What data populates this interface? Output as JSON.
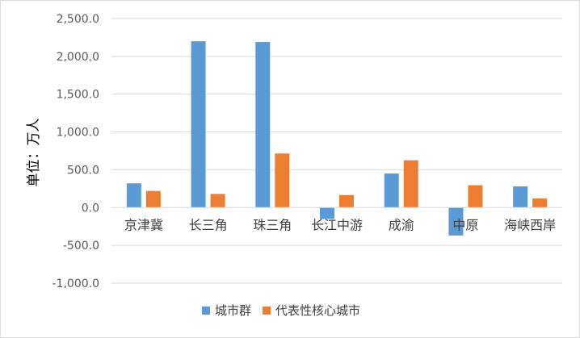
{
  "chart_data": {
    "type": "bar",
    "ylabel": "单位：万人",
    "ylim": [
      -1000,
      2500
    ],
    "yticks": [
      2500,
      2000,
      1500,
      1000,
      500,
      0,
      -500,
      -1000
    ],
    "ytick_labels": [
      "2,500.0",
      "2,000.0",
      "1,500.0",
      "1,000.0",
      "500.0",
      "0.0",
      "-500.0",
      "-1,000.0"
    ],
    "grid": true,
    "legend_position": "bottom",
    "categories": [
      "京津冀",
      "长三角",
      "珠三角",
      "长江中游",
      "成渝",
      "中原",
      "海峡西岸"
    ],
    "series": [
      {
        "name": "城市群",
        "color": "#5b9bd5",
        "values": [
          320,
          2200,
          2190,
          -150,
          450,
          -370,
          280
        ]
      },
      {
        "name": "代表性核心城市",
        "color": "#ed7d31",
        "values": [
          220,
          180,
          715,
          165,
          625,
          295,
          120
        ]
      }
    ]
  }
}
